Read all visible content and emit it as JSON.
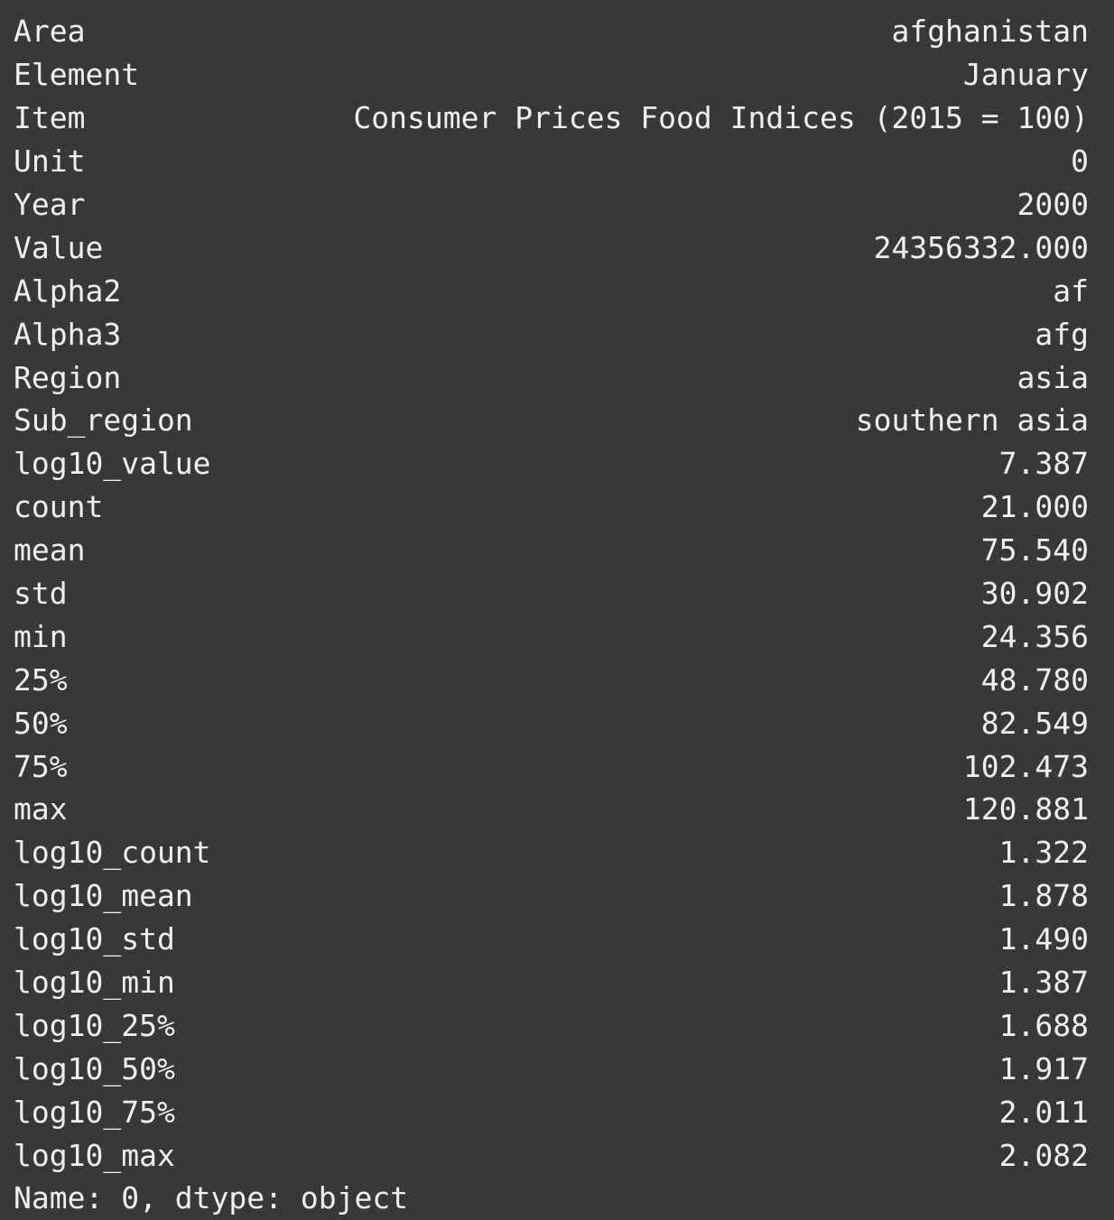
{
  "series_output": {
    "rows": [
      {
        "key": "Area",
        "value": "afghanistan"
      },
      {
        "key": "Element",
        "value": "January"
      },
      {
        "key": "Item",
        "value": "Consumer Prices Food Indices (2015 = 100)"
      },
      {
        "key": "Unit",
        "value": "0"
      },
      {
        "key": "Year",
        "value": "2000"
      },
      {
        "key": "Value",
        "value": "24356332.000"
      },
      {
        "key": "Alpha2",
        "value": "af"
      },
      {
        "key": "Alpha3",
        "value": "afg"
      },
      {
        "key": "Region",
        "value": "asia"
      },
      {
        "key": "Sub_region",
        "value": "southern asia"
      },
      {
        "key": "log10_value",
        "value": "7.387"
      },
      {
        "key": "count",
        "value": "21.000"
      },
      {
        "key": "mean",
        "value": "75.540"
      },
      {
        "key": "std",
        "value": "30.902"
      },
      {
        "key": "min",
        "value": "24.356"
      },
      {
        "key": "25%",
        "value": "48.780"
      },
      {
        "key": "50%",
        "value": "82.549"
      },
      {
        "key": "75%",
        "value": "102.473"
      },
      {
        "key": "max",
        "value": "120.881"
      },
      {
        "key": "log10_count",
        "value": "1.322"
      },
      {
        "key": "log10_mean",
        "value": "1.878"
      },
      {
        "key": "log10_std",
        "value": "1.490"
      },
      {
        "key": "log10_min",
        "value": "1.387"
      },
      {
        "key": "log10_25%",
        "value": "1.688"
      },
      {
        "key": "log10_50%",
        "value": "1.917"
      },
      {
        "key": "log10_75%",
        "value": "2.011"
      },
      {
        "key": "log10_max",
        "value": "2.082"
      }
    ],
    "footer": "Name: 0, dtype: object"
  },
  "colors": {
    "background": "#383838",
    "text": "#f0f0f0"
  }
}
